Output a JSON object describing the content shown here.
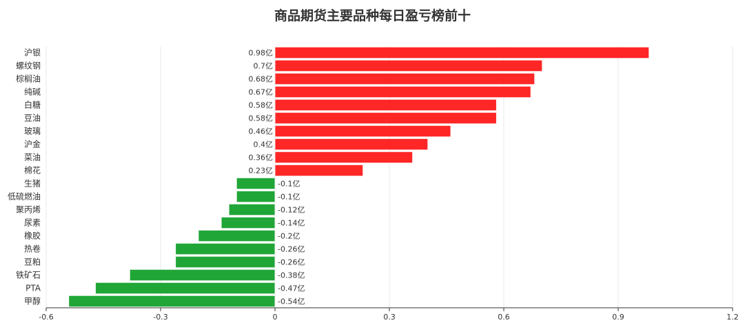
{
  "chart_data": {
    "type": "bar",
    "orientation": "horizontal",
    "title": "商品期货主要品种每日盈亏榜前十",
    "categories": [
      "沪银",
      "螺纹钢",
      "棕榈油",
      "纯碱",
      "白糖",
      "豆油",
      "玻璃",
      "沪金",
      "菜油",
      "棉花",
      "生猪",
      "低硫燃油",
      "聚丙烯",
      "尿素",
      "橡胶",
      "热卷",
      "豆粕",
      "铁矿石",
      "PTA",
      "甲醇"
    ],
    "values": [
      0.98,
      0.7,
      0.68,
      0.67,
      0.58,
      0.58,
      0.46,
      0.4,
      0.36,
      0.23,
      -0.1,
      -0.1,
      -0.12,
      -0.14,
      -0.2,
      -0.26,
      -0.26,
      -0.38,
      -0.47,
      -0.54
    ],
    "data_labels": [
      "0.98亿",
      "0.7亿",
      "0.68亿",
      "0.67亿",
      "0.58亿",
      "0.58亿",
      "0.46亿",
      "0.4亿",
      "0.36亿",
      "0.23亿",
      "-0.1亿",
      "-0.1亿",
      "-0.12亿",
      "-0.14亿",
      "-0.2亿",
      "-0.26亿",
      "-0.26亿",
      "-0.38亿",
      "-0.47亿",
      "-0.54亿"
    ],
    "xlim": [
      -0.6,
      1.2
    ],
    "x_ticks": [
      "-0.6",
      "-0.3",
      "0",
      "0.3",
      "0.6",
      "0.9",
      "1.2"
    ],
    "x_tick_values": [
      -0.6,
      -0.3,
      0,
      0.3,
      0.6,
      0.9,
      1.2
    ],
    "grid": "vertical",
    "colors": {
      "positive": "#ff2626",
      "negative": "#20a637",
      "grid": "#e8e8e8",
      "axis": "#333333"
    }
  }
}
